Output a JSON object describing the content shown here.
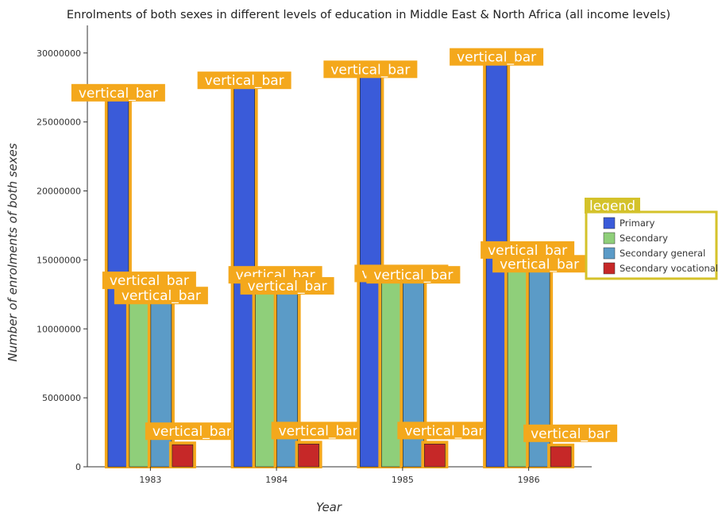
{
  "chart_data": {
    "type": "bar",
    "title": "Enrolments of both sexes in different levels of education in Middle East & North Africa (all income levels)",
    "xlabel": "Year",
    "ylabel": "Number of enrolments of both sexes",
    "categories": [
      "1983",
      "1984",
      "1985",
      "1986"
    ],
    "series": [
      {
        "name": "Primary",
        "color": "#3a5bd9",
        "values": [
          26600000,
          27500000,
          28300000,
          29200000
        ]
      },
      {
        "name": "Secondary",
        "color": "#8fcf7a",
        "values": [
          13000000,
          13400000,
          13500000,
          15200000
        ]
      },
      {
        "name": "Secondary general",
        "color": "#5b9bc7",
        "values": [
          11900000,
          12600000,
          13400000,
          14200000
        ]
      },
      {
        "name": "Secondary vocational",
        "color": "#c62828",
        "values": [
          1600000,
          1650000,
          1650000,
          1450000
        ]
      }
    ],
    "ylim": [
      0,
      32000000
    ],
    "yticks": [
      0,
      5000000,
      10000000,
      15000000,
      20000000,
      25000000,
      30000000
    ],
    "ytick_labels": [
      "0",
      "5000000",
      "10000000",
      "15000000",
      "20000000",
      "25000000",
      "30000000"
    ],
    "grid": false,
    "legend": {
      "title": "legend",
      "position": "right"
    },
    "annotation_text": "vertical_bar",
    "annotation_color": "#f4a81c",
    "legend_border_color": "#d4c22a"
  }
}
